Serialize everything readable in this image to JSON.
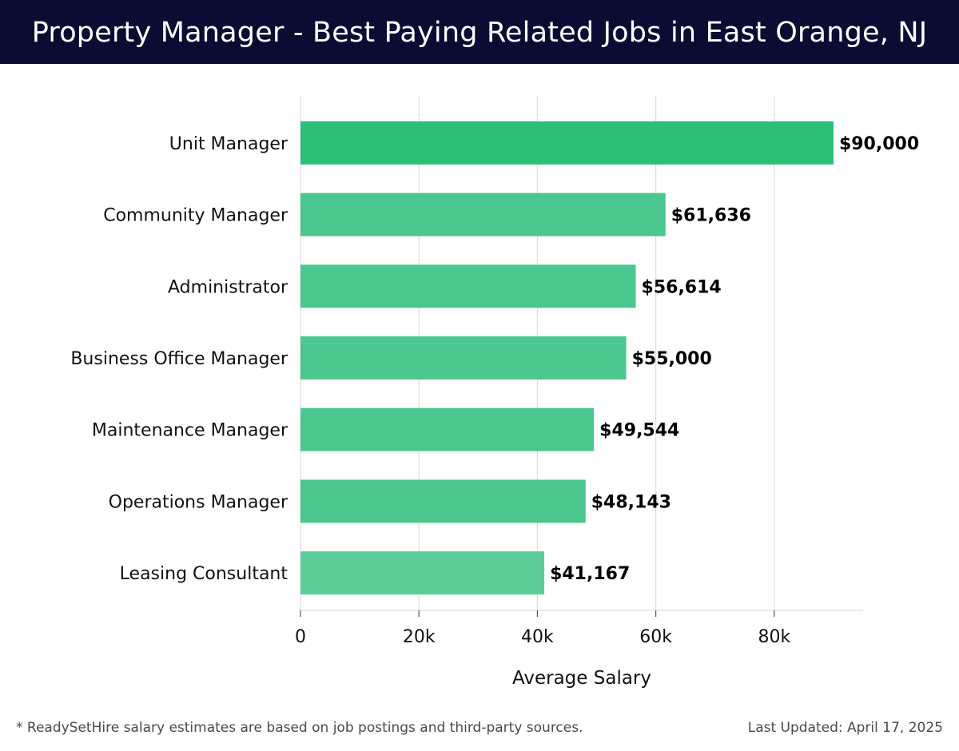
{
  "header": {
    "title": "Property Manager - Best Paying Related Jobs in East Orange, NJ"
  },
  "colors": {
    "header_bg": "#0b0c33",
    "bar_top": "#2bbf78",
    "bar": "#4cc78f",
    "bar_light": "#5ccd98",
    "grid": "#dddddd",
    "text": "#111111"
  },
  "chart_data": {
    "type": "bar",
    "orientation": "horizontal",
    "categories": [
      "Unit Manager",
      "Community Manager",
      "Administrator",
      "Business Office Manager",
      "Maintenance Manager",
      "Operations Manager",
      "Leasing Consultant"
    ],
    "values": [
      90000,
      61636,
      56614,
      55000,
      49544,
      48143,
      41167
    ],
    "value_labels": [
      "$90,000",
      "$61,636",
      "$56,614",
      "$55,000",
      "$49,544",
      "$48,143",
      "$41,167"
    ],
    "xlabel": "Average Salary",
    "ylabel": "",
    "xlim": [
      0,
      95000
    ],
    "xticks": [
      0,
      20000,
      40000,
      60000,
      80000
    ],
    "xtick_labels": [
      "0",
      "20k",
      "40k",
      "60k",
      "80k"
    ],
    "grid": true
  },
  "footer": {
    "note": "* ReadySetHire salary estimates are based on job postings and third-party sources.",
    "updated": "Last Updated: April 17, 2025"
  }
}
